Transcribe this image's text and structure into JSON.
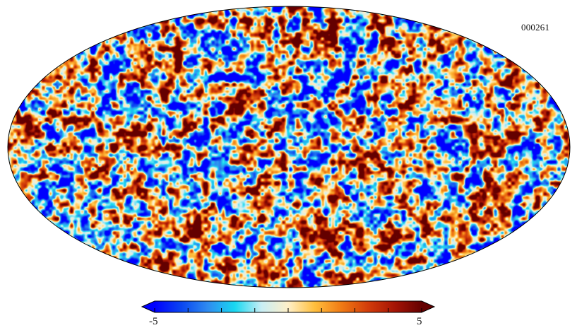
{
  "map": {
    "projection": "mollweide",
    "id_label": "000261",
    "field_style": "gaussian random temperature-like anisotropy field",
    "outline_color": "#000000",
    "background": "#ffffff"
  },
  "colorbar": {
    "min_label": "-5",
    "max_label": "5",
    "min_value": -5,
    "max_value": 5,
    "tick_count": 9,
    "extend": "both",
    "colormap": "planck",
    "colors": [
      "#0000ff",
      "#0a46f0",
      "#2f8cf0",
      "#18d8f0",
      "#c8eef5",
      "#fff0c8",
      "#ffbe3c",
      "#f07a14",
      "#d23c0a",
      "#a51405",
      "#640000"
    ]
  }
}
